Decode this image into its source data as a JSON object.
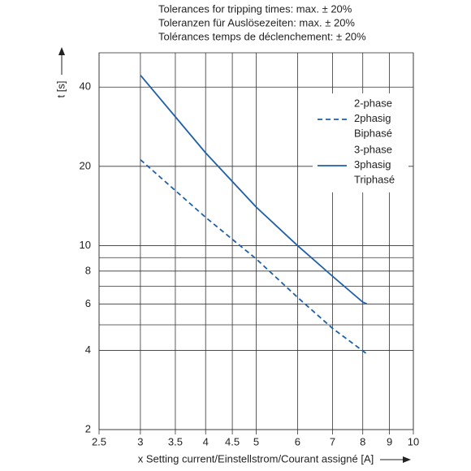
{
  "chart_data": {
    "type": "line",
    "notes": [
      "Tolerances for tripping times: max. ± 20%",
      "Toleranzen für Auslösezeiten: max. ± 20%",
      "Tolérances temps de déclenchement: ± 20%"
    ],
    "xlabel": "x Setting current/Einstellstrom/Courant assigné [A]",
    "ylabel": "t [s]",
    "xscale": "log",
    "yscale": "log",
    "xlim": [
      2.5,
      10
    ],
    "ylim": [
      2,
      54
    ],
    "xticks": [
      2.5,
      3,
      3.5,
      4,
      4.5,
      5,
      6,
      7,
      8,
      9,
      10
    ],
    "yticks": [
      2,
      4,
      6,
      8,
      10,
      20,
      40
    ],
    "yminor": [
      5,
      7,
      9
    ],
    "grid": true,
    "series": [
      {
        "name": [
          "2-phase",
          "2phasig",
          "Biphasé"
        ],
        "color": "#1f5fa8",
        "dash": true,
        "x": [
          3,
          4,
          5,
          6,
          7,
          8.2
        ],
        "values": [
          21.2,
          12.8,
          8.9,
          6.36,
          4.85,
          3.84
        ]
      },
      {
        "name": [
          "3-phase",
          "3phasig",
          "Triphasé"
        ],
        "color": "#1f5fa8",
        "dash": false,
        "x": [
          3,
          4,
          5,
          6,
          7,
          8,
          8.15
        ],
        "values": [
          44.4,
          22.5,
          14.0,
          10,
          7.65,
          6.1,
          6.0
        ]
      }
    ]
  }
}
